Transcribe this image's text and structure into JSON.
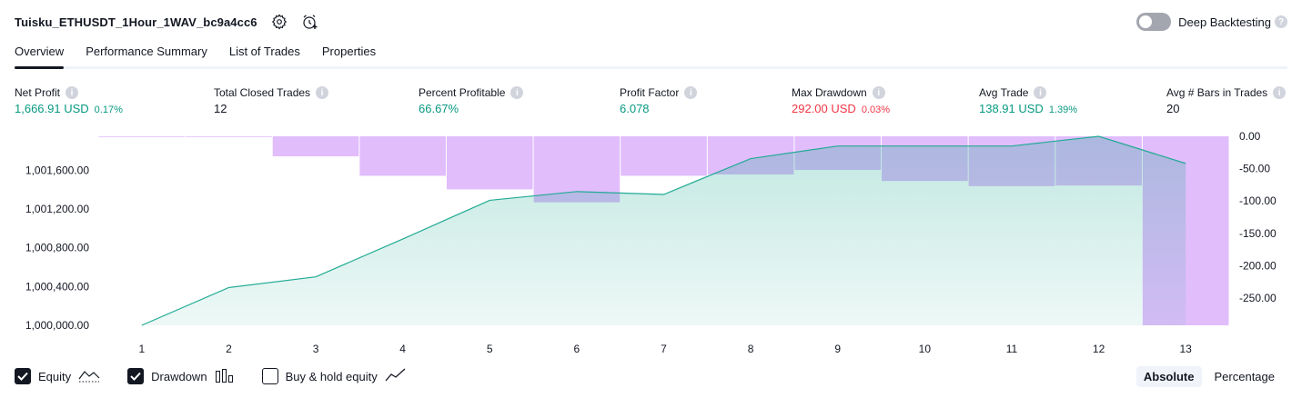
{
  "header": {
    "strategy_name": "Tuisku_ETHUSDT_1Hour_1WAV_bc9a4cc6",
    "deep_backtesting_label": "Deep Backtesting",
    "help_glyph": "?"
  },
  "tabs": [
    {
      "label": "Overview",
      "active": true
    },
    {
      "label": "Performance Summary",
      "active": false
    },
    {
      "label": "List of Trades",
      "active": false
    },
    {
      "label": "Properties",
      "active": false
    }
  ],
  "metrics": [
    {
      "label": "Net Profit",
      "value": "1,666.91 USD",
      "sub": "0.17%",
      "color": "green"
    },
    {
      "label": "Total Closed Trades",
      "value": "12",
      "sub": "",
      "color": "dark"
    },
    {
      "label": "Percent Profitable",
      "value": "66.67%",
      "sub": "",
      "color": "green"
    },
    {
      "label": "Profit Factor",
      "value": "6.078",
      "sub": "",
      "color": "green"
    },
    {
      "label": "Max Drawdown",
      "value": "292.00 USD",
      "sub": "0.03%",
      "color": "red"
    },
    {
      "label": "Avg Trade",
      "value": "138.91 USD",
      "sub": "1.39%",
      "color": "green"
    },
    {
      "label": "Avg # Bars in Trades",
      "value": "20",
      "sub": "",
      "color": "dark"
    }
  ],
  "chart_data": {
    "type": "line",
    "x": [
      1,
      2,
      3,
      4,
      5,
      6,
      7,
      8,
      9,
      10,
      11,
      12,
      13
    ],
    "series": [
      {
        "name": "Equity",
        "type": "area",
        "axis": "left",
        "values": [
          1000000,
          1000390,
          1000500,
          1000890,
          1001290,
          1001380,
          1001350,
          1001720,
          1001850,
          1001850,
          1001850,
          1001950,
          1001670
        ],
        "color": "#22ab94"
      },
      {
        "name": "Drawdown",
        "type": "bar",
        "axis": "right",
        "values": [
          0,
          0,
          -31,
          -61,
          -82,
          -102,
          -61,
          -59,
          -52,
          -69,
          -77,
          -76,
          -292
        ],
        "color": "#e1bdfc"
      }
    ],
    "yaxis_left": {
      "ticks": [
        "1,000,000.00",
        "1,000,400.00",
        "1,000,800.00",
        "1,001,200.00",
        "1,001,600.00"
      ],
      "tick_values": [
        1000000,
        1000400,
        1000800,
        1001200,
        1001600
      ],
      "range": [
        1000000,
        1001950
      ]
    },
    "yaxis_right": {
      "ticks": [
        "0.00",
        "-50.00",
        "-100.00",
        "-150.00",
        "-200.00",
        "-250.00"
      ],
      "tick_values": [
        0,
        -50,
        -100,
        -150,
        -200,
        -250
      ],
      "range": [
        -292,
        0
      ]
    },
    "xticks": [
      "1",
      "2",
      "3",
      "4",
      "5",
      "6",
      "7",
      "8",
      "9",
      "10",
      "11",
      "12",
      "13"
    ]
  },
  "legend": [
    {
      "label": "Equity",
      "checked": true,
      "icon": "equity-area-icon"
    },
    {
      "label": "Drawdown",
      "checked": true,
      "icon": "drawdown-bars-icon"
    },
    {
      "label": "Buy & hold equity",
      "checked": false,
      "icon": "buy-hold-line-icon"
    }
  ],
  "mode": [
    {
      "label": "Absolute",
      "active": true
    },
    {
      "label": "Percentage",
      "active": false
    }
  ],
  "colors": {
    "equity_line": "#22ab94",
    "drawdown_fill": "#e1bdfc",
    "overlap_fill": "#b1b6df",
    "green": "#089981",
    "red": "#f23645"
  }
}
